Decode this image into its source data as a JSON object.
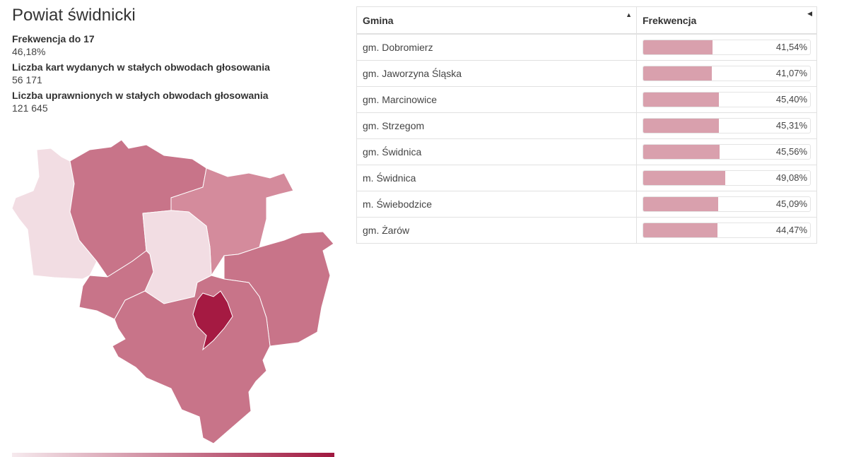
{
  "title": "Powiat świdnicki",
  "stats": [
    {
      "label": "Frekwencja do 17",
      "value": "46,18%"
    },
    {
      "label": "Liczba kart wydanych w stałych obwodach głosowania",
      "value": "56 171"
    },
    {
      "label": "Liczba uprawnionych w stałych obwodach głosowania",
      "value": "121 645"
    }
  ],
  "table": {
    "headers": {
      "gmina": "Gmina",
      "frekwencja": "Frekwencja"
    },
    "sort_icons": {
      "gmina": "▲",
      "frekwencja": "◀"
    },
    "rows": [
      {
        "name": "gm. Dobromierz",
        "value_text": "41,54%",
        "value": 41.54
      },
      {
        "name": "gm. Jaworzyna Śląska",
        "value_text": "41,07%",
        "value": 41.07
      },
      {
        "name": "gm. Marcinowice",
        "value_text": "45,40%",
        "value": 45.4
      },
      {
        "name": "gm. Strzegom",
        "value_text": "45,31%",
        "value": 45.31
      },
      {
        "name": "gm. Świdnica",
        "value_text": "45,56%",
        "value": 45.56
      },
      {
        "name": "m. Świdnica",
        "value_text": "49,08%",
        "value": 49.08
      },
      {
        "name": "m. Świebodzice",
        "value_text": "45,09%",
        "value": 45.09
      },
      {
        "name": "gm. Żarów",
        "value_text": "44,47%",
        "value": 44.47
      }
    ]
  },
  "colors": {
    "bar": "#d9a0ad",
    "map_lightest": "#f2dde3",
    "map_light": "#d48b9c",
    "map_mid": "#c87489",
    "map_dark": "#a51a42"
  }
}
